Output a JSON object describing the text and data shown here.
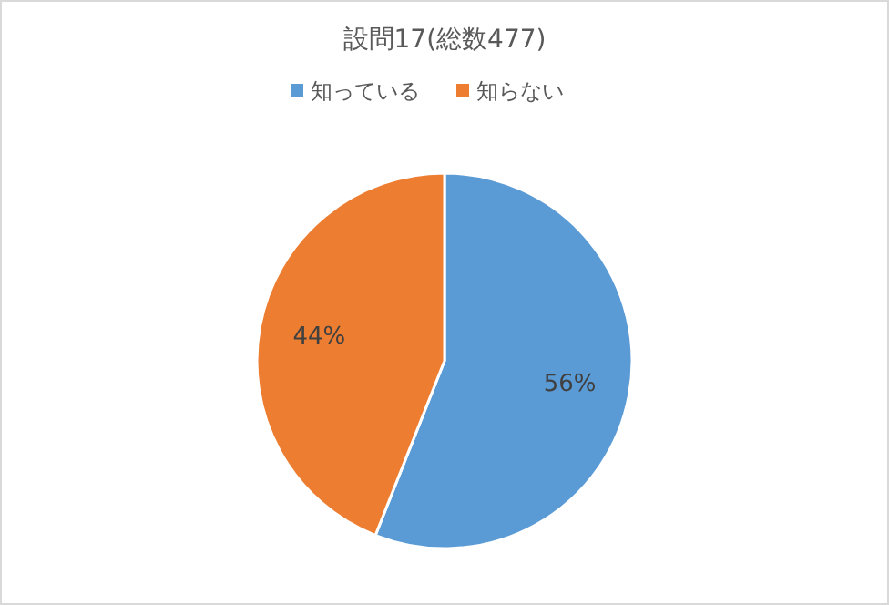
{
  "chart_data": {
    "type": "pie",
    "title": "設問17(総数477)",
    "categories": [
      "知っている",
      "知らない"
    ],
    "values": [
      56,
      44
    ],
    "colors": [
      "#5b9bd5",
      "#ed7d31"
    ],
    "value_labels": [
      "56%",
      "44%"
    ],
    "legend": "top"
  }
}
